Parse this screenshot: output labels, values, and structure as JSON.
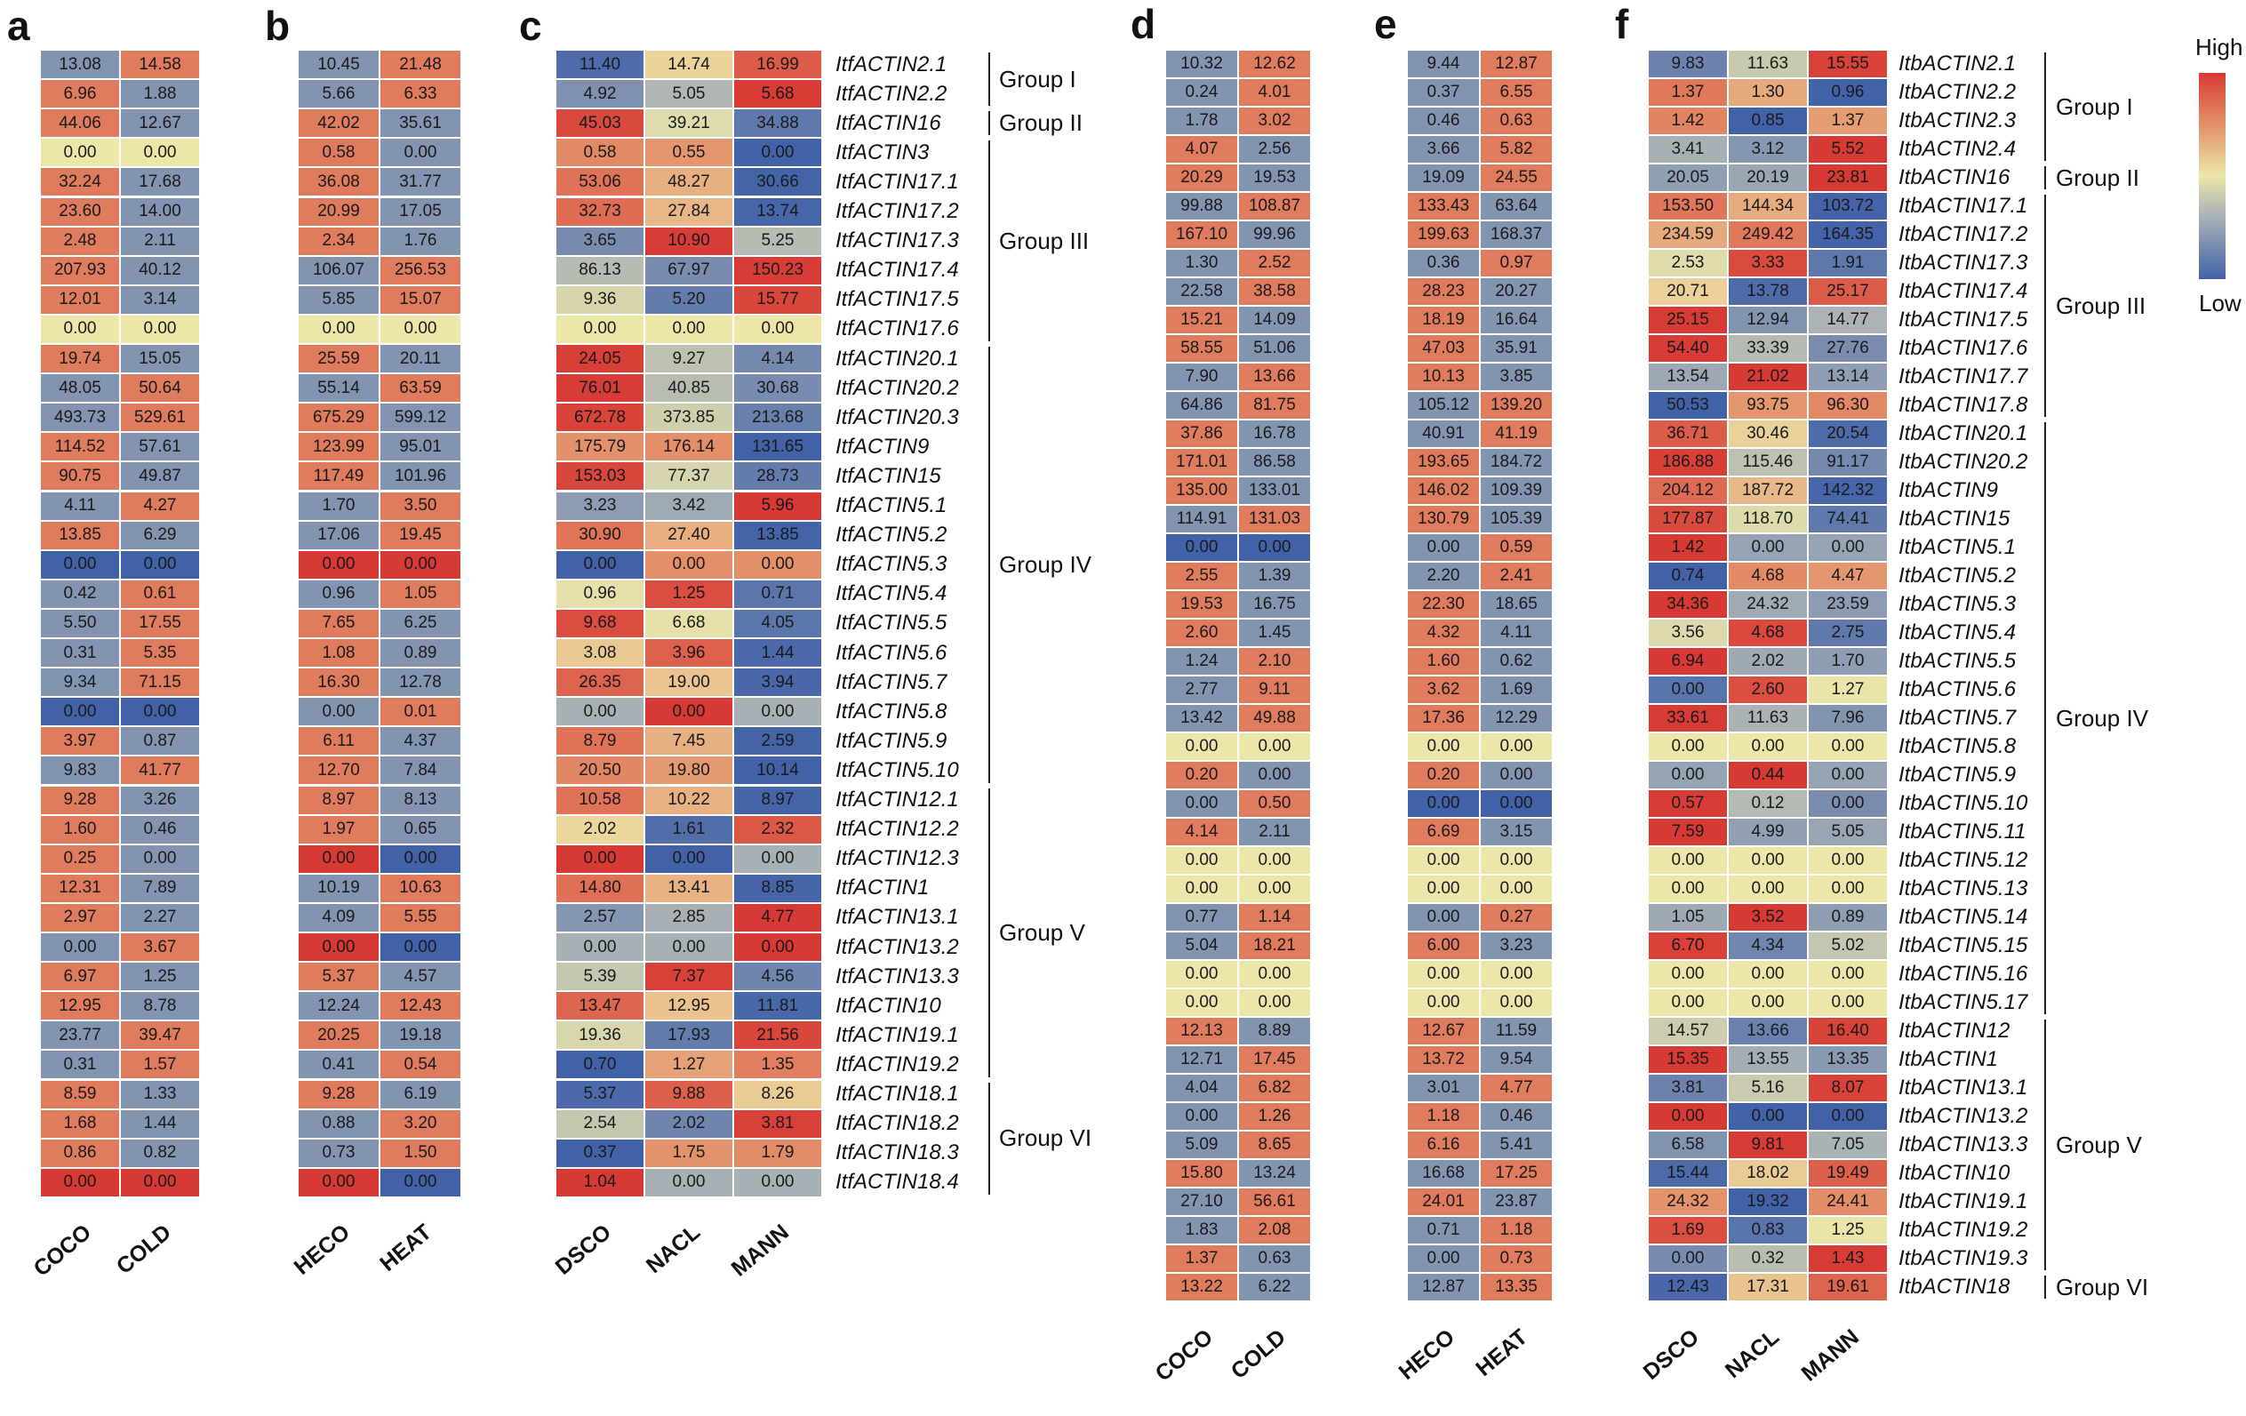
{
  "legend": {
    "high": "High",
    "low": "Low"
  },
  "colors": {
    "r": "#d73a34",
    "o": "#e3906a",
    "y": "#ede6a9",
    "g": "#a7b0b5",
    "b": "#4262a8"
  },
  "chart_data": [
    {
      "type": "heatmap",
      "panel": "a",
      "columns": [
        "COCO",
        "COLD"
      ],
      "scaling": "row",
      "values": [
        [
          13.08,
          14.58
        ],
        [
          6.96,
          1.88
        ],
        [
          44.06,
          12.67
        ],
        [
          0.0,
          0.0
        ],
        [
          32.24,
          17.68
        ],
        [
          23.6,
          14.0
        ],
        [
          2.48,
          2.11
        ],
        [
          207.93,
          40.12
        ],
        [
          12.01,
          3.14
        ],
        [
          0.0,
          0.0
        ],
        [
          19.74,
          15.05
        ],
        [
          48.05,
          50.64
        ],
        [
          493.73,
          529.61
        ],
        [
          114.52,
          57.61
        ],
        [
          90.75,
          49.87
        ],
        [
          4.11,
          4.27
        ],
        [
          13.85,
          6.29
        ],
        [
          0.0,
          0.0
        ],
        [
          0.42,
          0.61
        ],
        [
          5.5,
          17.55
        ],
        [
          0.31,
          5.35
        ],
        [
          9.34,
          71.15
        ],
        [
          0.0,
          0.0
        ],
        [
          3.97,
          0.87
        ],
        [
          9.83,
          41.77
        ],
        [
          9.28,
          3.26
        ],
        [
          1.6,
          0.46
        ],
        [
          0.25,
          0.0
        ],
        [
          12.31,
          7.89
        ],
        [
          2.97,
          2.27
        ],
        [
          0.0,
          3.67
        ],
        [
          6.97,
          1.25
        ],
        [
          12.95,
          8.78
        ],
        [
          23.77,
          39.47
        ],
        [
          0.31,
          1.57
        ],
        [
          8.59,
          1.33
        ],
        [
          1.68,
          1.44
        ],
        [
          0.86,
          0.82
        ],
        [
          0.0,
          0.0
        ]
      ],
      "color_overrides": {
        "17": "bb",
        "22": "bb",
        "38": "rr"
      }
    },
    {
      "type": "heatmap",
      "panel": "b",
      "columns": [
        "HECO",
        "HEAT"
      ],
      "scaling": "row",
      "values": [
        [
          10.45,
          21.48
        ],
        [
          5.66,
          6.33
        ],
        [
          42.02,
          35.61
        ],
        [
          0.58,
          0.0
        ],
        [
          36.08,
          31.77
        ],
        [
          20.99,
          17.05
        ],
        [
          2.34,
          1.76
        ],
        [
          106.07,
          256.53
        ],
        [
          5.85,
          15.07
        ],
        [
          0.0,
          0.0
        ],
        [
          25.59,
          20.11
        ],
        [
          55.14,
          63.59
        ],
        [
          675.29,
          599.12
        ],
        [
          123.99,
          95.01
        ],
        [
          117.49,
          101.96
        ],
        [
          1.7,
          3.5
        ],
        [
          17.06,
          19.45
        ],
        [
          0.0,
          0.0
        ],
        [
          0.96,
          1.05
        ],
        [
          7.65,
          6.25
        ],
        [
          1.08,
          0.89
        ],
        [
          16.3,
          12.78
        ],
        [
          0.0,
          0.01
        ],
        [
          6.11,
          4.37
        ],
        [
          12.7,
          7.84
        ],
        [
          8.97,
          8.13
        ],
        [
          1.97,
          0.65
        ],
        [
          0.0,
          0.0
        ],
        [
          10.19,
          10.63
        ],
        [
          4.09,
          5.55
        ],
        [
          0.0,
          0.0
        ],
        [
          5.37,
          4.57
        ],
        [
          12.24,
          12.43
        ],
        [
          20.25,
          19.18
        ],
        [
          0.41,
          0.54
        ],
        [
          9.28,
          6.19
        ],
        [
          0.88,
          3.2
        ],
        [
          0.73,
          1.5
        ],
        [
          0.0,
          0.0
        ]
      ],
      "color_overrides": {
        "17": "rr",
        "27": "rb",
        "30": "rb",
        "38": "rb"
      }
    },
    {
      "type": "heatmap",
      "panel": "c",
      "columns": [
        "DSCO",
        "NACL",
        "MANN"
      ],
      "scaling": "row",
      "genes": [
        "ItfACTIN2.1",
        "ItfACTIN2.2",
        "ItfACTIN16",
        "ItfACTIN3",
        "ItfACTIN17.1",
        "ItfACTIN17.2",
        "ItfACTIN17.3",
        "ItfACTIN17.4",
        "ItfACTIN17.5",
        "ItfACTIN17.6",
        "ItfACTIN20.1",
        "ItfACTIN20.2",
        "ItfACTIN20.3",
        "ItfACTIN9",
        "ItfACTIN15",
        "ItfACTIN5.1",
        "ItfACTIN5.2",
        "ItfACTIN5.3",
        "ItfACTIN5.4",
        "ItfACTIN5.5",
        "ItfACTIN5.6",
        "ItfACTIN5.7",
        "ItfACTIN5.8",
        "ItfACTIN5.9",
        "ItfACTIN5.10",
        "ItfACTIN12.1",
        "ItfACTIN12.2",
        "ItfACTIN12.3",
        "ItfACTIN1",
        "ItfACTIN13.1",
        "ItfACTIN13.2",
        "ItfACTIN13.3",
        "ItfACTIN10",
        "ItfACTIN19.1",
        "ItfACTIN19.2",
        "ItfACTIN18.1",
        "ItfACTIN18.2",
        "ItfACTIN18.3",
        "ItfACTIN18.4"
      ],
      "values": [
        [
          11.4,
          14.74,
          16.99
        ],
        [
          4.92,
          5.05,
          5.68
        ],
        [
          45.03,
          39.21,
          34.88
        ],
        [
          0.58,
          0.55,
          0.0
        ],
        [
          53.06,
          48.27,
          30.66
        ],
        [
          32.73,
          27.84,
          13.74
        ],
        [
          3.65,
          10.9,
          5.25
        ],
        [
          86.13,
          67.97,
          150.23
        ],
        [
          9.36,
          5.2,
          15.77
        ],
        [
          0.0,
          0.0,
          0.0
        ],
        [
          24.05,
          9.27,
          4.14
        ],
        [
          76.01,
          40.85,
          30.68
        ],
        [
          672.78,
          373.85,
          213.68
        ],
        [
          175.79,
          176.14,
          131.65
        ],
        [
          153.03,
          77.37,
          28.73
        ],
        [
          3.23,
          3.42,
          5.96
        ],
        [
          30.9,
          27.4,
          13.85
        ],
        [
          0.0,
          0.0,
          0.0
        ],
        [
          0.96,
          1.25,
          0.71
        ],
        [
          9.68,
          6.68,
          4.05
        ],
        [
          3.08,
          3.96,
          1.44
        ],
        [
          26.35,
          19.0,
          3.94
        ],
        [
          0.0,
          0.0,
          0.0
        ],
        [
          8.79,
          7.45,
          2.59
        ],
        [
          20.5,
          19.8,
          10.14
        ],
        [
          10.58,
          10.22,
          8.97
        ],
        [
          2.02,
          1.61,
          2.32
        ],
        [
          0.0,
          0.0,
          0.0
        ],
        [
          14.8,
          13.41,
          8.85
        ],
        [
          2.57,
          2.85,
          4.77
        ],
        [
          0.0,
          0.0,
          0.0
        ],
        [
          5.39,
          7.37,
          4.56
        ],
        [
          13.47,
          12.95,
          11.81
        ],
        [
          19.36,
          17.93,
          21.56
        ],
        [
          0.7,
          1.27,
          1.35
        ],
        [
          5.37,
          9.88,
          8.26
        ],
        [
          2.54,
          2.02,
          3.81
        ],
        [
          0.37,
          1.75,
          1.79
        ],
        [
          1.04,
          0.0,
          0.0
        ]
      ],
      "color_overrides": {
        "17": "boo",
        "22": "grg",
        "27": "rbg",
        "30": "ggr",
        "38": "rgg"
      },
      "groups": [
        {
          "label": "Group I",
          "start": 0,
          "end": 1
        },
        {
          "label": "Group II",
          "start": 2,
          "end": 2
        },
        {
          "label": "Group III",
          "start": 3,
          "end": 9
        },
        {
          "label": "Group IV",
          "start": 10,
          "end": 24
        },
        {
          "label": "Group V",
          "start": 25,
          "end": 34
        },
        {
          "label": "Group VI",
          "start": 35,
          "end": 38
        }
      ]
    },
    {
      "type": "heatmap",
      "panel": "d",
      "columns": [
        "COCO",
        "COLD"
      ],
      "scaling": "row",
      "values": [
        [
          10.32,
          12.62
        ],
        [
          0.24,
          4.01
        ],
        [
          1.78,
          3.02
        ],
        [
          4.07,
          2.56
        ],
        [
          20.29,
          19.53
        ],
        [
          99.88,
          108.87
        ],
        [
          167.1,
          99.96
        ],
        [
          1.3,
          2.52
        ],
        [
          22.58,
          38.58
        ],
        [
          15.21,
          14.09
        ],
        [
          58.55,
          51.06
        ],
        [
          7.9,
          13.66
        ],
        [
          64.86,
          81.75
        ],
        [
          37.86,
          16.78
        ],
        [
          171.01,
          86.58
        ],
        [
          135.0,
          133.01
        ],
        [
          114.91,
          131.03
        ],
        [
          0.0,
          0.0
        ],
        [
          2.55,
          1.39
        ],
        [
          19.53,
          16.75
        ],
        [
          2.6,
          1.45
        ],
        [
          1.24,
          2.1
        ],
        [
          2.77,
          9.11
        ],
        [
          13.42,
          49.88
        ],
        [
          0.0,
          0.0
        ],
        [
          0.2,
          0.0
        ],
        [
          0.0,
          0.5
        ],
        [
          4.14,
          2.11
        ],
        [
          0.0,
          0.0
        ],
        [
          0.0,
          0.0
        ],
        [
          0.77,
          1.14
        ],
        [
          5.04,
          18.21
        ],
        [
          0.0,
          0.0
        ],
        [
          0.0,
          0.0
        ],
        [
          12.13,
          8.89
        ],
        [
          12.71,
          17.45
        ],
        [
          4.04,
          6.82
        ],
        [
          0.0,
          1.26
        ],
        [
          5.09,
          8.65
        ],
        [
          15.8,
          13.24
        ],
        [
          27.1,
          56.61
        ],
        [
          1.83,
          2.08
        ],
        [
          1.37,
          0.63
        ],
        [
          13.22,
          6.22
        ]
      ],
      "color_overrides": {
        "17": "bb"
      }
    },
    {
      "type": "heatmap",
      "panel": "e",
      "columns": [
        "HECO",
        "HEAT"
      ],
      "scaling": "row",
      "values": [
        [
          9.44,
          12.87
        ],
        [
          0.37,
          6.55
        ],
        [
          0.46,
          0.63
        ],
        [
          3.66,
          5.82
        ],
        [
          19.09,
          24.55
        ],
        [
          133.43,
          63.64
        ],
        [
          199.63,
          168.37
        ],
        [
          0.36,
          0.97
        ],
        [
          28.23,
          20.27
        ],
        [
          18.19,
          16.64
        ],
        [
          47.03,
          35.91
        ],
        [
          10.13,
          3.85
        ],
        [
          105.12,
          139.2
        ],
        [
          40.91,
          41.19
        ],
        [
          193.65,
          184.72
        ],
        [
          146.02,
          109.39
        ],
        [
          130.79,
          105.39
        ],
        [
          0.0,
          0.59
        ],
        [
          2.2,
          2.41
        ],
        [
          22.3,
          18.65
        ],
        [
          4.32,
          4.11
        ],
        [
          1.6,
          0.62
        ],
        [
          3.62,
          1.69
        ],
        [
          17.36,
          12.29
        ],
        [
          0.0,
          0.0
        ],
        [
          0.2,
          0.0
        ],
        [
          0.0,
          0.0
        ],
        [
          6.69,
          3.15
        ],
        [
          0.0,
          0.0
        ],
        [
          0.0,
          0.0
        ],
        [
          0.0,
          0.27
        ],
        [
          6.0,
          3.23
        ],
        [
          0.0,
          0.0
        ],
        [
          0.0,
          0.0
        ],
        [
          12.67,
          11.59
        ],
        [
          13.72,
          9.54
        ],
        [
          3.01,
          4.77
        ],
        [
          1.18,
          0.46
        ],
        [
          6.16,
          5.41
        ],
        [
          16.68,
          17.25
        ],
        [
          24.01,
          23.87
        ],
        [
          0.71,
          1.18
        ],
        [
          0.0,
          0.73
        ],
        [
          12.87,
          13.35
        ]
      ],
      "color_overrides": {
        "26": "bb"
      }
    },
    {
      "type": "heatmap",
      "panel": "f",
      "columns": [
        "DSCO",
        "NACL",
        "MANN"
      ],
      "scaling": "row",
      "genes": [
        "ItbACTIN2.1",
        "ItbACTIN2.2",
        "ItbACTIN2.3",
        "ItbACTIN2.4",
        "ItbACTIN16",
        "ItbACTIN17.1",
        "ItbACTIN17.2",
        "ItbACTIN17.3",
        "ItbACTIN17.4",
        "ItbACTIN17.5",
        "ItbACTIN17.6",
        "ItbACTIN17.7",
        "ItbACTIN17.8",
        "ItbACTIN20.1",
        "ItbACTIN20.2",
        "ItbACTIN9",
        "ItbACTIN15",
        "ItbACTIN5.1",
        "ItbACTIN5.2",
        "ItbACTIN5.3",
        "ItbACTIN5.4",
        "ItbACTIN5.5",
        "ItbACTIN5.6",
        "ItbACTIN5.7",
        "ItbACTIN5.8",
        "ItbACTIN5.9",
        "ItbACTIN5.10",
        "ItbACTIN5.11",
        "ItbACTIN5.12",
        "ItbACTIN5.13",
        "ItbACTIN5.14",
        "ItbACTIN5.15",
        "ItbACTIN5.16",
        "ItbACTIN5.17",
        "ItbACTIN12",
        "ItbACTIN1",
        "ItbACTIN13.1",
        "ItbACTIN13.2",
        "ItbACTIN13.3",
        "ItbACTIN10",
        "ItbACTIN19.1",
        "ItbACTIN19.2",
        "ItbACTIN19.3",
        "ItbACTIN18"
      ],
      "values": [
        [
          9.83,
          11.63,
          15.55
        ],
        [
          1.37,
          1.3,
          0.96
        ],
        [
          1.42,
          0.85,
          1.37
        ],
        [
          3.41,
          3.12,
          5.52
        ],
        [
          20.05,
          20.19,
          23.81
        ],
        [
          153.5,
          144.34,
          103.72
        ],
        [
          234.59,
          249.42,
          164.35
        ],
        [
          2.53,
          3.33,
          1.91
        ],
        [
          20.71,
          13.78,
          25.17
        ],
        [
          25.15,
          12.94,
          14.77
        ],
        [
          54.4,
          33.39,
          27.76
        ],
        [
          13.54,
          21.02,
          13.14
        ],
        [
          50.53,
          93.75,
          96.3
        ],
        [
          36.71,
          30.46,
          20.54
        ],
        [
          186.88,
          115.46,
          91.17
        ],
        [
          204.12,
          187.72,
          142.32
        ],
        [
          177.87,
          118.7,
          74.41
        ],
        [
          1.42,
          0.0,
          0.0
        ],
        [
          0.74,
          4.68,
          4.47
        ],
        [
          34.36,
          24.32,
          23.59
        ],
        [
          3.56,
          4.68,
          2.75
        ],
        [
          6.94,
          2.02,
          1.7
        ],
        [
          0.0,
          2.6,
          1.27
        ],
        [
          33.61,
          11.63,
          7.96
        ],
        [
          0.0,
          0.0,
          0.0
        ],
        [
          0.0,
          0.44,
          0.0
        ],
        [
          0.57,
          0.12,
          0.0
        ],
        [
          7.59,
          4.99,
          5.05
        ],
        [
          0.0,
          0.0,
          0.0
        ],
        [
          0.0,
          0.0,
          0.0
        ],
        [
          1.05,
          3.52,
          0.89
        ],
        [
          6.7,
          4.34,
          5.02
        ],
        [
          0.0,
          0.0,
          0.0
        ],
        [
          0.0,
          0.0,
          0.0
        ],
        [
          14.57,
          13.66,
          16.4
        ],
        [
          15.35,
          13.55,
          13.35
        ],
        [
          3.81,
          5.16,
          8.07
        ],
        [
          0.0,
          0.0,
          0.0
        ],
        [
          6.58,
          9.81,
          7.05
        ],
        [
          15.44,
          18.02,
          19.49
        ],
        [
          24.32,
          19.32,
          24.41
        ],
        [
          1.69,
          0.83,
          1.25
        ],
        [
          0.0,
          0.32,
          1.43
        ],
        [
          12.43,
          17.31,
          19.61
        ]
      ],
      "color_overrides": {
        "37": "rbb"
      },
      "groups": [
        {
          "label": "Group I",
          "start": 0,
          "end": 3
        },
        {
          "label": "Group II",
          "start": 4,
          "end": 4
        },
        {
          "label": "Group III",
          "start": 5,
          "end": 12
        },
        {
          "label": "Group IV",
          "start": 13,
          "end": 33
        },
        {
          "label": "Group V",
          "start": 34,
          "end": 42
        },
        {
          "label": "Group VI",
          "start": 43,
          "end": 43
        }
      ]
    }
  ]
}
